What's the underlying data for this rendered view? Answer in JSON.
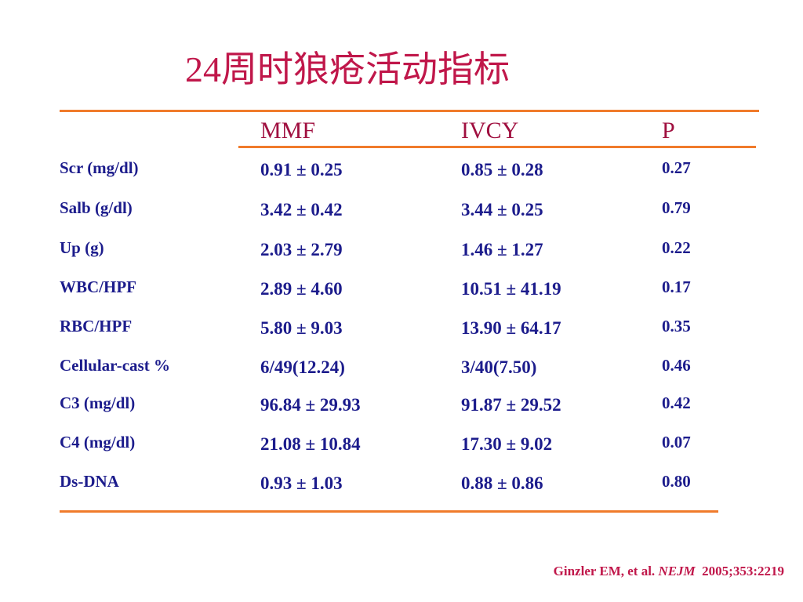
{
  "title": "24周时狼疮活动指标",
  "table": {
    "headers": [
      "MMF",
      "IVCY",
      "P"
    ],
    "rows": [
      {
        "label": "Scr (mg/dl)",
        "mmf": "0.91 ± 0.25",
        "ivcy": "0.85 ± 0.28",
        "p": "0.27"
      },
      {
        "label": "Salb (g/dl)",
        "mmf": "3.42 ± 0.42",
        "ivcy": "3.44 ± 0.25",
        "p": "0.79"
      },
      {
        "label": "Up (g)",
        "mmf": "2.03 ± 2.79",
        "ivcy": "1.46 ± 1.27",
        "p": "0.22"
      },
      {
        "label": "WBC/HPF",
        "mmf": "2.89 ± 4.60",
        "ivcy": "10.51 ± 41.19",
        "p": "0.17"
      },
      {
        "label": "RBC/HPF",
        "mmf": "5.80 ± 9.03",
        "ivcy": "13.90 ± 64.17",
        "p": "0.35"
      },
      {
        "label": "Cellular-cast %",
        "mmf": "6/49(12.24)",
        "ivcy": "3/40(7.50)",
        "p": "0.46"
      },
      {
        "label": "C3 (mg/dl)",
        "mmf": "96.84 ± 29.93",
        "ivcy": "91.87 ± 29.52",
        "p": "0.42"
      },
      {
        "label": "C4 (mg/dl)",
        "mmf": "21.08 ± 10.84",
        "ivcy": "17.30 ± 9.02",
        "p": "0.07"
      },
      {
        "label": "Ds-DNA",
        "mmf": "0.93 ± 1.03",
        "ivcy": "0.88 ± 0.86",
        "p": "0.80"
      }
    ]
  },
  "citation": {
    "authors": "Ginzler EM, et al.",
    "journal": "NEJM",
    "ref": "2005;353:2219"
  },
  "colors": {
    "title": "#c0174a",
    "header_text": "#a01040",
    "body_text": "#1c1c8c",
    "rule": "#f07b2b"
  }
}
